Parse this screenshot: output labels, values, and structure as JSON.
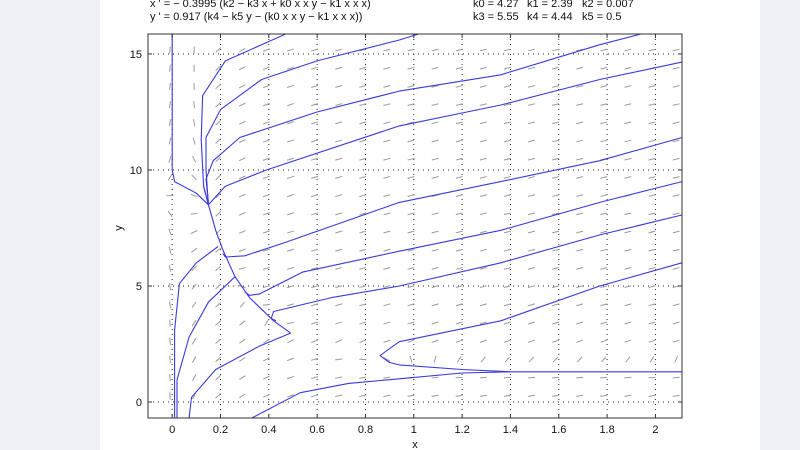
{
  "equations": {
    "x_eq": "x ' = − 0.3995 (k2 − k3 x + k0 x x y − k1 x x x)",
    "y_eq": "y ' = 0.917 (k4 − k5 y − (k0 x x y − k1 x x x))"
  },
  "params": {
    "row1": [
      "k0 = 4.27",
      "k1 = 2.39",
      "k2 = 0.007"
    ],
    "row2": [
      "k3 = 5.55",
      "k4 = 4.44",
      "k5 = 0.5"
    ]
  },
  "param_values": {
    "k0": 4.27,
    "k1": 2.39,
    "k2": 0.007,
    "k3": 5.55,
    "k4": 4.44,
    "k5": 0.5,
    "ax": -0.3995,
    "ay": 0.917
  },
  "colors": {
    "trajectory": "#3a3adc",
    "field": "#9a9a9a",
    "grid": "#222222"
  },
  "chart_data": {
    "type": "line",
    "xlabel": "x",
    "ylabel": "y",
    "xlim": [
      -0.1,
      2.11
    ],
    "ylim": [
      -0.69,
      15.86
    ],
    "xticks": [
      "0",
      "0.2",
      "0.4",
      "0.6",
      "0.8",
      "1",
      "1.2",
      "1.4",
      "1.6",
      "1.8",
      "2"
    ],
    "xtick_values": [
      0,
      0.2,
      0.4,
      0.6,
      0.8,
      1,
      1.2,
      1.4,
      1.6,
      1.8,
      2
    ],
    "yticks": [
      "0",
      "5",
      "10",
      "15"
    ],
    "ytick_values": [
      0,
      5,
      10,
      15
    ],
    "grid": "dotted",
    "direction_field": true,
    "series": [
      {
        "points": [
          [
            0.47,
            15.86
          ],
          [
            0.22,
            14.7
          ],
          [
            0.126,
            13.2
          ],
          [
            0.12,
            11.3
          ],
          [
            0.13,
            9.3
          ],
          [
            0.15,
            8.5
          ]
        ]
      },
      {
        "points": [
          [
            1.02,
            15.86
          ],
          [
            0.94,
            15.6
          ],
          [
            0.6,
            14.7
          ],
          [
            0.37,
            13.9
          ],
          [
            0.2,
            12.6
          ],
          [
            0.14,
            11.4
          ],
          [
            0.14,
            10
          ],
          [
            0.15,
            8.5
          ]
        ]
      },
      {
        "points": [
          [
            1.94,
            15.86
          ],
          [
            1.77,
            15.4
          ],
          [
            1.36,
            14.1
          ],
          [
            0.94,
            13.4
          ],
          [
            0.6,
            12.5
          ],
          [
            0.28,
            11.4
          ],
          [
            0.17,
            10.4
          ],
          [
            0.14,
            9.6
          ],
          [
            0.15,
            8.6
          ]
        ]
      },
      {
        "points": [
          [
            2.11,
            14.65
          ],
          [
            1.77,
            13.9
          ],
          [
            1.36,
            12.8
          ],
          [
            0.94,
            11.9
          ],
          [
            0.39,
            10.0
          ],
          [
            0.22,
            9.3
          ],
          [
            0.15,
            8.5
          ]
        ]
      },
      {
        "points": [
          [
            2.11,
            11.4
          ],
          [
            1.77,
            10.4
          ],
          [
            1.36,
            9.5
          ],
          [
            0.94,
            8.6
          ],
          [
            0.46,
            6.85
          ],
          [
            0.3,
            6.3
          ],
          [
            0.22,
            6.25
          ],
          [
            0.21,
            6.4
          ]
        ]
      },
      {
        "points": [
          [
            2.11,
            9.5
          ],
          [
            1.77,
            8.6
          ],
          [
            1.36,
            7.4
          ],
          [
            0.94,
            6.5
          ],
          [
            0.54,
            5.6
          ],
          [
            0.36,
            4.65
          ],
          [
            0.32,
            4.6
          ],
          [
            0.3,
            4.75
          ]
        ]
      },
      {
        "points": [
          [
            2.11,
            8.06
          ],
          [
            1.77,
            7.2
          ],
          [
            1.36,
            6.0
          ],
          [
            0.94,
            5.0
          ],
          [
            0.66,
            4.5
          ],
          [
            0.42,
            3.9
          ],
          [
            0.41,
            3.6
          ],
          [
            0.43,
            3.5
          ]
        ]
      },
      {
        "points": [
          [
            2.11,
            6.0
          ],
          [
            1.77,
            5.0
          ],
          [
            1.36,
            3.5
          ],
          [
            0.94,
            2.6
          ],
          [
            0.86,
            2.0
          ],
          [
            0.9,
            1.7
          ],
          [
            0.94,
            1.6
          ],
          [
            1.2,
            1.4
          ],
          [
            1.4,
            1.3
          ],
          [
            2.11,
            1.3
          ]
        ]
      },
      {
        "points": [
          [
            0.33,
            -0.69
          ],
          [
            0.53,
            0.4
          ],
          [
            0.73,
            0.8
          ],
          [
            0.94,
            1.0
          ],
          [
            1.2,
            1.25
          ],
          [
            1.4,
            1.3
          ]
        ]
      },
      {
        "points": [
          [
            0.13,
            9.3
          ],
          [
            0.15,
            8.5
          ],
          [
            0.18,
            7.4
          ],
          [
            0.21,
            6.55
          ],
          [
            0.26,
            5.4
          ],
          [
            0.32,
            4.5
          ],
          [
            0.42,
            3.5
          ],
          [
            0.49,
            2.97
          ],
          [
            0.36,
            2.4
          ],
          [
            0.18,
            1.4
          ],
          [
            0.08,
            0.2
          ],
          [
            0.07,
            -0.69
          ]
        ]
      },
      {
        "points": [
          [
            0.0,
            15.86
          ],
          [
            0.0,
            10.0
          ],
          [
            0.01,
            9.5
          ],
          [
            0.1,
            9.0
          ],
          [
            0.15,
            8.5
          ]
        ]
      },
      {
        "points": [
          [
            0.19,
            6.7
          ],
          [
            0.1,
            6.0
          ],
          [
            0.03,
            5.1
          ],
          [
            0.01,
            3.1
          ],
          [
            0.01,
            -0.69
          ]
        ]
      },
      {
        "points": [
          [
            0.26,
            5.4
          ],
          [
            0.15,
            4.3
          ],
          [
            0.07,
            2.8
          ],
          [
            0.02,
            0.95
          ],
          [
            0.02,
            -0.69
          ]
        ]
      }
    ]
  }
}
